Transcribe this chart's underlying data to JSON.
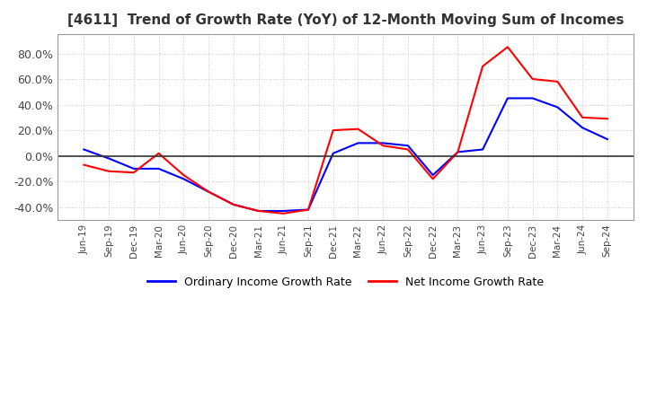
{
  "title": "[4611]  Trend of Growth Rate (YoY) of 12-Month Moving Sum of Incomes",
  "title_fontsize": 11,
  "background_color": "#ffffff",
  "plot_bg_color": "#ffffff",
  "grid_color": "#cccccc",
  "legend_labels": [
    "Ordinary Income Growth Rate",
    "Net Income Growth Rate"
  ],
  "legend_colors": [
    "#0000ff",
    "#ff0000"
  ],
  "x_labels": [
    "Jun-19",
    "Sep-19",
    "Dec-19",
    "Mar-20",
    "Jun-20",
    "Sep-20",
    "Dec-20",
    "Mar-21",
    "Jun-21",
    "Sep-21",
    "Dec-21",
    "Mar-22",
    "Jun-22",
    "Sep-22",
    "Dec-22",
    "Mar-23",
    "Jun-23",
    "Sep-23",
    "Dec-23",
    "Mar-24",
    "Jun-24",
    "Sep-24"
  ],
  "ordinary_income": [
    5,
    -2,
    -10,
    -10,
    -18,
    -28,
    -38,
    -43,
    -43,
    -42,
    2,
    10,
    10,
    8,
    -15,
    3,
    5,
    45,
    45,
    38,
    22,
    13
  ],
  "net_income": [
    -7,
    -12,
    -13,
    2,
    -15,
    -28,
    -38,
    -43,
    -45,
    -42,
    20,
    21,
    8,
    5,
    -18,
    3,
    70,
    85,
    60,
    58,
    30,
    29
  ],
  "ylim": [
    -50,
    95
  ],
  "yticks": [
    -40,
    -20,
    0,
    20,
    40,
    60,
    80
  ]
}
